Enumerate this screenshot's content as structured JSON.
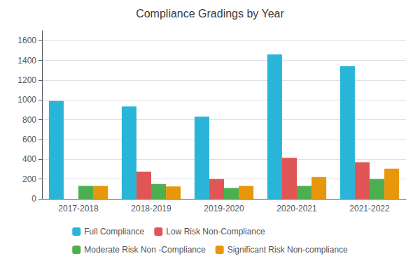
{
  "chart_data": {
    "type": "bar",
    "title": "Compliance Gradings by Year",
    "categories": [
      "2017-2018",
      "2018-2019",
      "2019-2020",
      "2020-2021",
      "2021-2022"
    ],
    "series": [
      {
        "name": "Full Compliance",
        "color": "#29B5D8",
        "values": [
          990,
          935,
          830,
          1460,
          1340
        ]
      },
      {
        "name": "Low Risk Non-Compliance",
        "color": "#E05555",
        "values": [
          0,
          275,
          200,
          415,
          370
        ]
      },
      {
        "name": "Moderate Risk Non -Compliance",
        "color": "#4CAF50",
        "values": [
          130,
          150,
          110,
          130,
          200
        ]
      },
      {
        "name": "Significant Risk Non-compliance",
        "color": "#E8960A",
        "values": [
          130,
          125,
          130,
          220,
          305
        ]
      }
    ],
    "ylim": [
      0,
      1700
    ],
    "yticks": [
      0,
      200,
      400,
      600,
      800,
      1000,
      1200,
      1400,
      1600
    ],
    "grid": true,
    "legend": "bottom"
  }
}
